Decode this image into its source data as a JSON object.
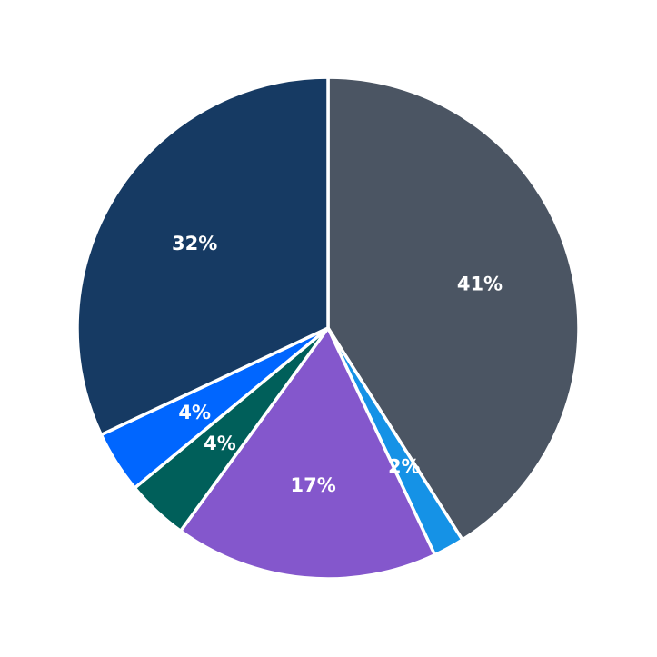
{
  "chart_data": {
    "type": "pie",
    "title": "",
    "start_angle": "12 o'clock",
    "direction": "clockwise",
    "legend": "none",
    "slices": [
      {
        "label": "41%",
        "value": 41,
        "color": "#4b5563"
      },
      {
        "label": "2%",
        "value": 2,
        "color": "#1592e6"
      },
      {
        "label": "17%",
        "value": 17,
        "color": "#8457cc"
      },
      {
        "label": "4%",
        "value": 4,
        "color": "#005f5a"
      },
      {
        "label": "4%",
        "value": 4,
        "color": "#0066ff"
      },
      {
        "label": "32%",
        "value": 32,
        "color": "#163a63"
      }
    ]
  }
}
